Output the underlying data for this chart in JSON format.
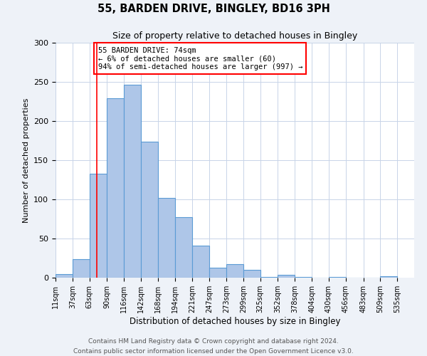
{
  "title": "55, BARDEN DRIVE, BINGLEY, BD16 3PH",
  "subtitle": "Size of property relative to detached houses in Bingley",
  "xlabel": "Distribution of detached houses by size in Bingley",
  "ylabel": "Number of detached properties",
  "bin_labels": [
    "11sqm",
    "37sqm",
    "63sqm",
    "90sqm",
    "116sqm",
    "142sqm",
    "168sqm",
    "194sqm",
    "221sqm",
    "247sqm",
    "273sqm",
    "299sqm",
    "325sqm",
    "352sqm",
    "378sqm",
    "404sqm",
    "430sqm",
    "456sqm",
    "483sqm",
    "509sqm",
    "535sqm"
  ],
  "bar_values": [
    5,
    24,
    133,
    229,
    246,
    174,
    102,
    77,
    41,
    13,
    17,
    10,
    1,
    4,
    1,
    0,
    1,
    0,
    0,
    2
  ],
  "bar_color": "#aec6e8",
  "bar_edge_color": "#5b9bd5",
  "red_line_x": 74,
  "annotation_text": "55 BARDEN DRIVE: 74sqm\n← 6% of detached houses are smaller (60)\n94% of semi-detached houses are larger (997) →",
  "annotation_box_color": "white",
  "annotation_box_edge_color": "red",
  "ylim": [
    0,
    300
  ],
  "yticks": [
    0,
    50,
    100,
    150,
    200,
    250,
    300
  ],
  "bin_edges": [
    11,
    37,
    63,
    90,
    116,
    142,
    168,
    194,
    221,
    247,
    273,
    299,
    325,
    352,
    378,
    404,
    430,
    456,
    483,
    509,
    535
  ],
  "footer_text": "Contains HM Land Registry data © Crown copyright and database right 2024.\nContains public sector information licensed under the Open Government Licence v3.0.",
  "background_color": "#eef2f8",
  "plot_background_color": "white",
  "grid_color": "#c8d4e8"
}
